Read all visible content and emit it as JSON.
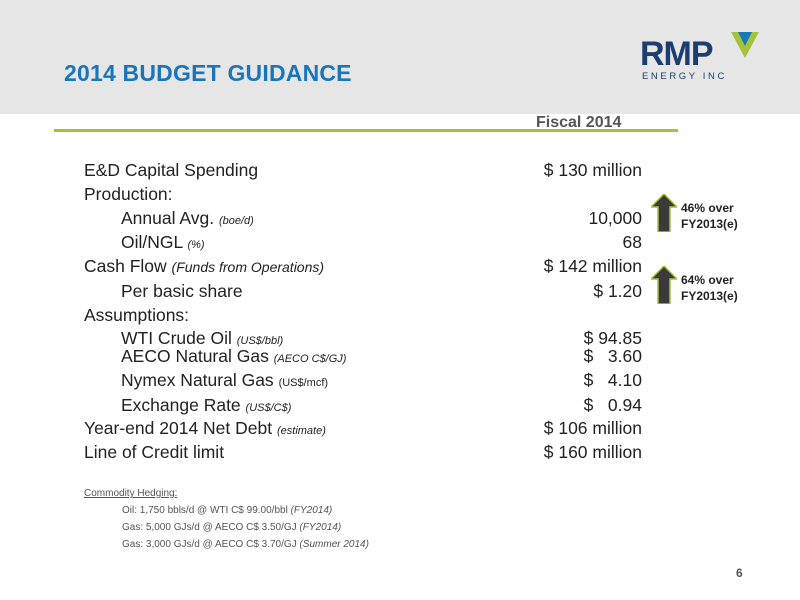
{
  "slide": {
    "title": "2014 BUDGET GUIDANCE",
    "page_number": "6",
    "logo": {
      "word": "RMP",
      "sub": "ENERGY INC"
    },
    "column_header": "Fiscal 2014",
    "colors": {
      "title": "#1a75bb",
      "accent_line": "#a3c43a",
      "header_bg": "#e6e6e7",
      "arrow": "#3a3a3a"
    },
    "rows": [
      {
        "label": "E&D Capital Spending",
        "note": "",
        "value": "$ 130 million"
      },
      {
        "label": "Production:",
        "note": "",
        "value": ""
      },
      {
        "label": "Annual Avg.",
        "note": "(boe/d)",
        "value": "10,000"
      },
      {
        "label": "Oil/NGL",
        "note": "(%)",
        "value": "68"
      },
      {
        "label": "Cash Flow",
        "note": "(Funds from Operations)",
        "value": "$ 142 million"
      },
      {
        "label": "Per basic share",
        "note": "",
        "value": "$ 1.20"
      },
      {
        "label": "Assumptions:",
        "note": "",
        "value": ""
      },
      {
        "label": "WTI Crude Oil",
        "note": "(US$/bbl)",
        "value": "$ 94.85"
      },
      {
        "label": "AECO Natural Gas",
        "note": "(AECO C$/GJ)",
        "value": "$   3.60"
      },
      {
        "label": "Nymex Natural Gas",
        "note": "(US$/mcf)",
        "value": "$   4.10"
      },
      {
        "label": "Exchange Rate",
        "note": "(US$/C$)",
        "value": "$   0.94"
      },
      {
        "label": "Year-end 2014 Net Debt",
        "note": "(estimate)",
        "value": "$ 106 million"
      },
      {
        "label": "Line of Credit limit",
        "note": "",
        "value": "$ 160 million"
      }
    ],
    "callouts": [
      {
        "line1": "46% over",
        "line2": "FY2013(e)",
        "icon": "up-arrow-icon"
      },
      {
        "line1": "64% over",
        "line2": "FY2013(e)",
        "icon": "up-arrow-icon"
      }
    ],
    "hedging": {
      "title": "Commodity Hedging:",
      "items": [
        {
          "text": "Oil: 1,750 bbls/d @ WTI C$ 99.00/bbl",
          "period": "(FY2014)"
        },
        {
          "text": "Gas: 5,000 GJs/d @ AECO C$ 3.50/GJ",
          "period": "(FY2014)"
        },
        {
          "text": "Gas: 3,000 GJs/d @ AECO C$ 3.70/GJ",
          "period": "(Summer 2014)"
        }
      ]
    }
  }
}
